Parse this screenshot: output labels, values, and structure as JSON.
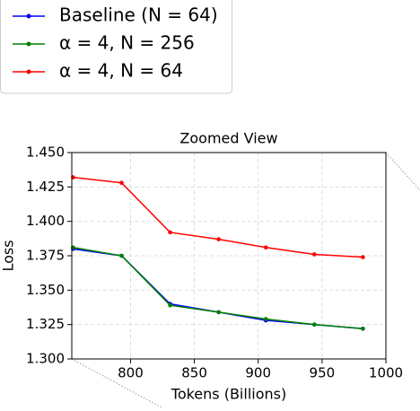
{
  "chart_data": {
    "type": "line",
    "title": "Zoomed View",
    "x_label": "Tokens (Billions)",
    "y_label": "Loss",
    "x": [
      755,
      793,
      831,
      869,
      906,
      944,
      982
    ],
    "series": [
      {
        "name": "Baseline (N = 64)",
        "color": "#0000ff",
        "values": [
          1.38,
          1.375,
          1.34,
          1.334,
          1.328,
          1.325,
          1.322
        ]
      },
      {
        "name": "α = 4, N = 256",
        "color": "#008000",
        "values": [
          1.381,
          1.375,
          1.339,
          1.334,
          1.329,
          1.325,
          1.322
        ]
      },
      {
        "name": "α = 4, N = 64",
        "color": "#ff0000",
        "values": [
          1.432,
          1.428,
          1.392,
          1.387,
          1.381,
          1.376,
          1.374
        ]
      }
    ],
    "xlim": [
      754,
      1000
    ],
    "xticks": [
      800,
      850,
      900,
      950,
      1000
    ],
    "ylim": [
      1.3,
      1.45
    ],
    "yticks": [
      {
        "value": 1.3,
        "label": "1.300"
      },
      {
        "value": 1.325,
        "label": "1.325"
      },
      {
        "value": 1.35,
        "label": "1.350"
      },
      {
        "value": 1.375,
        "label": "1.375"
      },
      {
        "value": 1.4,
        "label": "1.400"
      },
      {
        "value": 1.425,
        "label": "1.425"
      },
      {
        "value": 1.45,
        "label": "1.450"
      }
    ],
    "grid": true,
    "legend": "upper left"
  }
}
